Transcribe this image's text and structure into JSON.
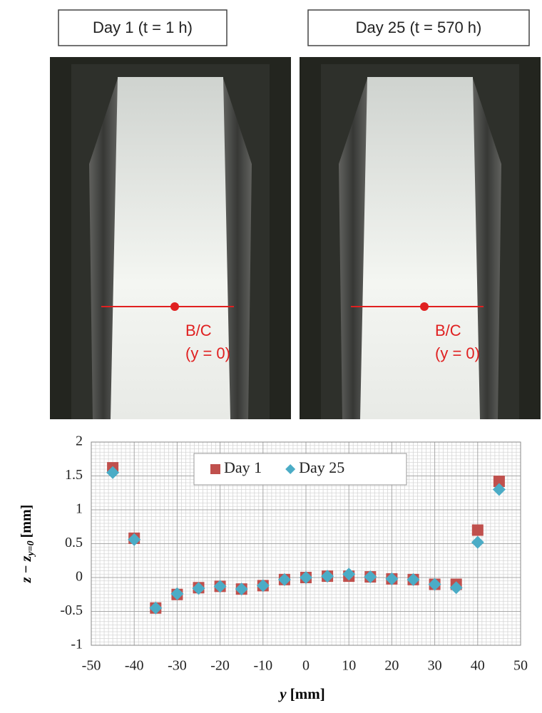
{
  "photos": [
    {
      "label": "Day 1 (t = 1 h)",
      "annotation": [
        "B/C",
        "(y = 0)"
      ]
    },
    {
      "label": "Day 25 (t = 570 h)",
      "annotation": [
        "B/C",
        "(y = 0)"
      ]
    }
  ],
  "chart_data": {
    "type": "scatter",
    "x_label": {
      "var": "y",
      "unit": "[mm]"
    },
    "y_label": {
      "main": "z − z",
      "sub": "y=0",
      "unit": "[mm]"
    },
    "x": [
      -45,
      -40,
      -35,
      -30,
      -25,
      -20,
      -15,
      -10,
      -5,
      0,
      5,
      10,
      15,
      20,
      25,
      30,
      35,
      40,
      45
    ],
    "series": [
      {
        "name": "Day 1",
        "color": "#c0504d",
        "marker": "square",
        "values": [
          1.62,
          0.58,
          -0.45,
          -0.25,
          -0.15,
          -0.13,
          -0.17,
          -0.12,
          -0.03,
          0,
          0.02,
          0.02,
          0.01,
          -0.02,
          -0.03,
          -0.1,
          -0.1,
          0.7,
          1.42
        ]
      },
      {
        "name": "Day 25",
        "color": "#4bacc6",
        "marker": "diamond",
        "values": [
          1.55,
          0.56,
          -0.45,
          -0.24,
          -0.16,
          -0.13,
          -0.17,
          -0.12,
          -0.03,
          0,
          0.02,
          0.05,
          0.01,
          -0.02,
          -0.03,
          -0.1,
          -0.15,
          0.52,
          1.3
        ]
      }
    ],
    "xlim": [
      -50,
      50
    ],
    "xticks": [
      -50,
      -40,
      -30,
      -20,
      -10,
      0,
      10,
      20,
      30,
      40,
      50
    ],
    "ylim": [
      -1,
      2
    ],
    "yticks": [
      -1,
      -0.5,
      0,
      0.5,
      1,
      1.5,
      2
    ],
    "grid": true,
    "legend": "top"
  }
}
